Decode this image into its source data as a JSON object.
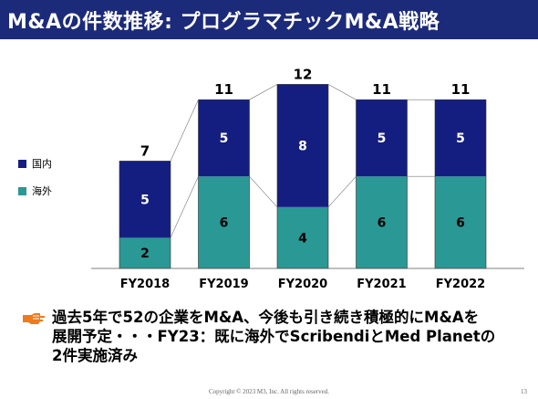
{
  "header": {
    "title": "M&Aの件数推移: プログラマチックM&A戦略"
  },
  "colors": {
    "header_bg": "#1c2a7a",
    "domestic": "#141e80",
    "overseas": "#2a9894",
    "bullet": "#f07a1a"
  },
  "chart_data": {
    "type": "bar",
    "stacked": true,
    "categories": [
      "FY2018",
      "FY2019",
      "FY2020",
      "FY2021",
      "FY2022"
    ],
    "series": [
      {
        "name": "海外",
        "values": [
          2,
          6,
          4,
          6,
          6
        ]
      },
      {
        "name": "国内",
        "values": [
          5,
          5,
          8,
          5,
          5
        ]
      }
    ],
    "totals": [
      7,
      11,
      12,
      11,
      11
    ],
    "ylim": [
      0,
      12
    ],
    "grid": false,
    "legend_position": "left",
    "connector_lines": true
  },
  "legend": {
    "items": [
      "国内",
      "海外"
    ]
  },
  "note": {
    "text": "過去5年で52の企業をM&A、今後も引き続き積極的にM&Aを\n展開予定・・・FY23：既に海外でScribendiとMed Planetの\n2件実施済み"
  },
  "footer": {
    "copyright": "Copyright © 2023  M3, Inc.  All rights reserved.",
    "page": "13"
  }
}
